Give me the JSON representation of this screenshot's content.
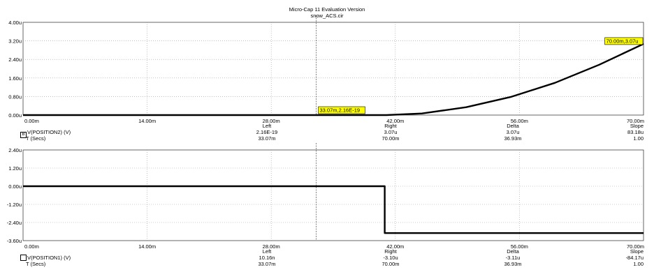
{
  "window": {
    "title": "Micro-Cap 11 Evaluation Version",
    "subtitle": "snow_ACS.cir"
  },
  "chart_data": [
    {
      "type": "line",
      "series": [
        {
          "name": "V(POSITION2) (V)",
          "x_unit": "ms",
          "x": [
            0,
            10,
            20,
            30,
            40,
            41,
            45,
            50,
            55,
            60,
            65,
            70
          ],
          "y": [
            0,
            0,
            0,
            0,
            0,
            0.0,
            0.07,
            0.34,
            0.78,
            1.39,
            2.17,
            3.07
          ]
        }
      ],
      "xlim": [
        0,
        70
      ],
      "ylim": [
        0,
        4
      ],
      "x_ticks": [
        "0.00m",
        "14.00m",
        "28.00m",
        "42.00m",
        "56.00m",
        "70.00m"
      ],
      "y_ticks": [
        "0.00u",
        "0.80u",
        "1.60u",
        "2.40u",
        "3.20u",
        "4.00u"
      ],
      "y_tick_values": [
        0,
        0.8,
        1.6,
        2.4,
        3.2,
        4.0
      ],
      "grid": true,
      "cursor_x": 33.07,
      "annotations": [
        {
          "text": "33.07m,2.16E-19",
          "x": 33.07,
          "y": 0
        },
        {
          "text": "70.00m,3.07u",
          "x": 70,
          "y": 3.07
        }
      ],
      "table": {
        "trace_label": "V(POSITION2) (V)",
        "box_glyph": "B",
        "x_label": "T (Secs)",
        "columns": [
          "Left",
          "Right",
          "Delta",
          "Slope"
        ],
        "trace_values": [
          "2.16E-19",
          "3.07u",
          "3.07u",
          "83.18u"
        ],
        "x_values": [
          "33.07m",
          "70.00m",
          "36.93m",
          "1.00"
        ]
      }
    },
    {
      "type": "line",
      "series": [
        {
          "name": "V(POSITION1) (V)",
          "x_unit": "ms",
          "x": [
            0,
            40.8,
            40.8,
            70
          ],
          "y": [
            0,
            0,
            -3.1,
            -3.1
          ]
        }
      ],
      "xlim": [
        0,
        70
      ],
      "ylim": [
        -3.6,
        2.4
      ],
      "x_ticks": [
        "0.00m",
        "14.00m",
        "28.00m",
        "42.00m",
        "56.00m",
        "70.00m"
      ],
      "y_ticks": [
        "-3.60u",
        "-2.40u",
        "-1.20u",
        "0.00u",
        "1.20u",
        "2.40u"
      ],
      "y_tick_values": [
        -3.6,
        -2.4,
        -1.2,
        0,
        1.2,
        2.4
      ],
      "grid": true,
      "cursor_x": 33.07,
      "annotations": [],
      "table": {
        "trace_label": "V(POSITION1) (V)",
        "box_glyph": "",
        "x_label": "T (Secs)",
        "columns": [
          "Left",
          "Right",
          "Delta",
          "Slope"
        ],
        "trace_values": [
          "10.16n",
          "-3.10u",
          "-3.11u",
          "-84.17u"
        ],
        "x_values": [
          "33.07m",
          "70.00m",
          "36.93m",
          "1.00"
        ]
      }
    }
  ]
}
